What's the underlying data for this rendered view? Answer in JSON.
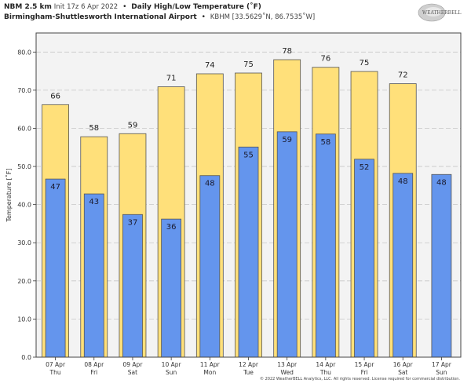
{
  "header": {
    "model": "NBM 2.5 km",
    "init": "Init 17z 6 Apr 2022",
    "separator": "•",
    "title": "Daily High/Low Temperature (˚F)",
    "station_name": "Birmingham-Shuttlesworth International Airport",
    "station_info": "KBHM [33.5629˚N, 86.7535˚W]"
  },
  "logo_text": "WeatherBELL",
  "copyright": "© 2022 WeatherBELL Analytics, LLC. All rights reserved. License required for commercial distribution.",
  "colors": {
    "high": "#ffe07a",
    "low": "#6495ed",
    "plot_bg": "#f3f3f3",
    "edge": "#555555"
  },
  "chart_data": {
    "type": "bar",
    "title": "Daily High/Low Temperature (˚F)",
    "xlabel": "",
    "ylabel": "Temperature [˚F]",
    "ylim": [
      0,
      85
    ],
    "yticks": [
      0,
      10,
      20,
      30,
      40,
      50,
      60,
      70,
      80
    ],
    "ytick_labels": [
      "0.0",
      "10.0",
      "20.0",
      "30.0",
      "40.0",
      "50.0",
      "60.0",
      "70.0",
      "80.0"
    ],
    "grid": true,
    "categories": [
      [
        "07 Apr",
        "Thu"
      ],
      [
        "08 Apr",
        "Fri"
      ],
      [
        "09 Apr",
        "Sat"
      ],
      [
        "10 Apr",
        "Sun"
      ],
      [
        "11 Apr",
        "Mon"
      ],
      [
        "12 Apr",
        "Tue"
      ],
      [
        "13 Apr",
        "Wed"
      ],
      [
        "14 Apr",
        "Thu"
      ],
      [
        "15 Apr",
        "Fri"
      ],
      [
        "16 Apr",
        "Sat"
      ],
      [
        "17 Apr",
        "Sun"
      ]
    ],
    "series": [
      {
        "name": "High",
        "values": [
          66.2,
          57.8,
          58.6,
          70.9,
          74.3,
          74.5,
          78.0,
          76.0,
          74.9,
          71.7,
          null
        ],
        "labels": [
          "66",
          "58",
          "59",
          "71",
          "74",
          "75",
          "78",
          "76",
          "75",
          "72",
          ""
        ]
      },
      {
        "name": "Low",
        "values": [
          46.7,
          42.8,
          37.4,
          36.2,
          47.6,
          55.1,
          59.1,
          58.5,
          51.9,
          48.2,
          47.9
        ],
        "labels": [
          "47",
          "43",
          "37",
          "36",
          "48",
          "55",
          "59",
          "58",
          "52",
          "48",
          "48"
        ]
      }
    ]
  }
}
